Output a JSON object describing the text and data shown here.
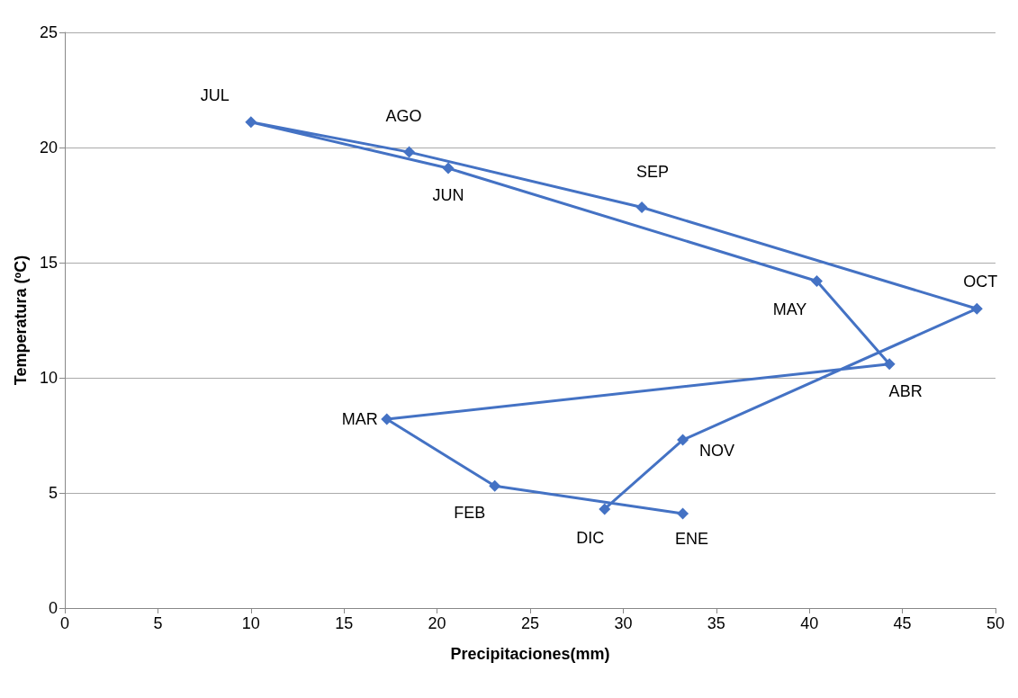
{
  "chart_data": {
    "type": "line",
    "xlabel": "Precipitaciones(mm)",
    "ylabel": "Temperatura (ºC)",
    "series": [
      {
        "color": "#4472c4",
        "x": [
          33.2,
          23.1,
          17.3,
          44.3,
          40.4,
          20.6,
          10.0,
          18.5,
          31.0,
          49.0,
          33.2,
          29.0
        ],
        "values": [
          4.1,
          5.3,
          8.2,
          10.6,
          14.2,
          19.1,
          21.1,
          19.8,
          17.4,
          13.0,
          7.3,
          4.3
        ]
      }
    ],
    "annotations": [
      {
        "text": "ENE",
        "x": 33.2,
        "y": 4.1
      },
      {
        "text": "FEB",
        "x": 23.1,
        "y": 5.3
      },
      {
        "text": "MAR",
        "x": 17.3,
        "y": 8.2
      },
      {
        "text": "ABR",
        "x": 44.3,
        "y": 10.6
      },
      {
        "text": "MAY",
        "x": 40.4,
        "y": 14.2
      },
      {
        "text": "JUN",
        "x": 20.6,
        "y": 19.1
      },
      {
        "text": "JUL",
        "x": 10.0,
        "y": 21.1
      },
      {
        "text": "AGO",
        "x": 18.5,
        "y": 19.8
      },
      {
        "text": "SEP",
        "x": 31.0,
        "y": 17.4
      },
      {
        "text": "OCT",
        "x": 49.0,
        "y": 13.0
      },
      {
        "text": "NOV",
        "x": 33.2,
        "y": 7.3
      },
      {
        "text": "DIC",
        "x": 29.0,
        "y": 4.3
      }
    ],
    "xlim": [
      0,
      50
    ],
    "xticks": [
      0,
      5,
      10,
      15,
      20,
      25,
      30,
      35,
      40,
      45,
      50
    ],
    "ylim": [
      0,
      25
    ],
    "yticks": [
      0,
      5,
      10,
      15,
      20,
      25
    ],
    "grid": "y",
    "marker": "diamond",
    "line_style": "solid"
  }
}
